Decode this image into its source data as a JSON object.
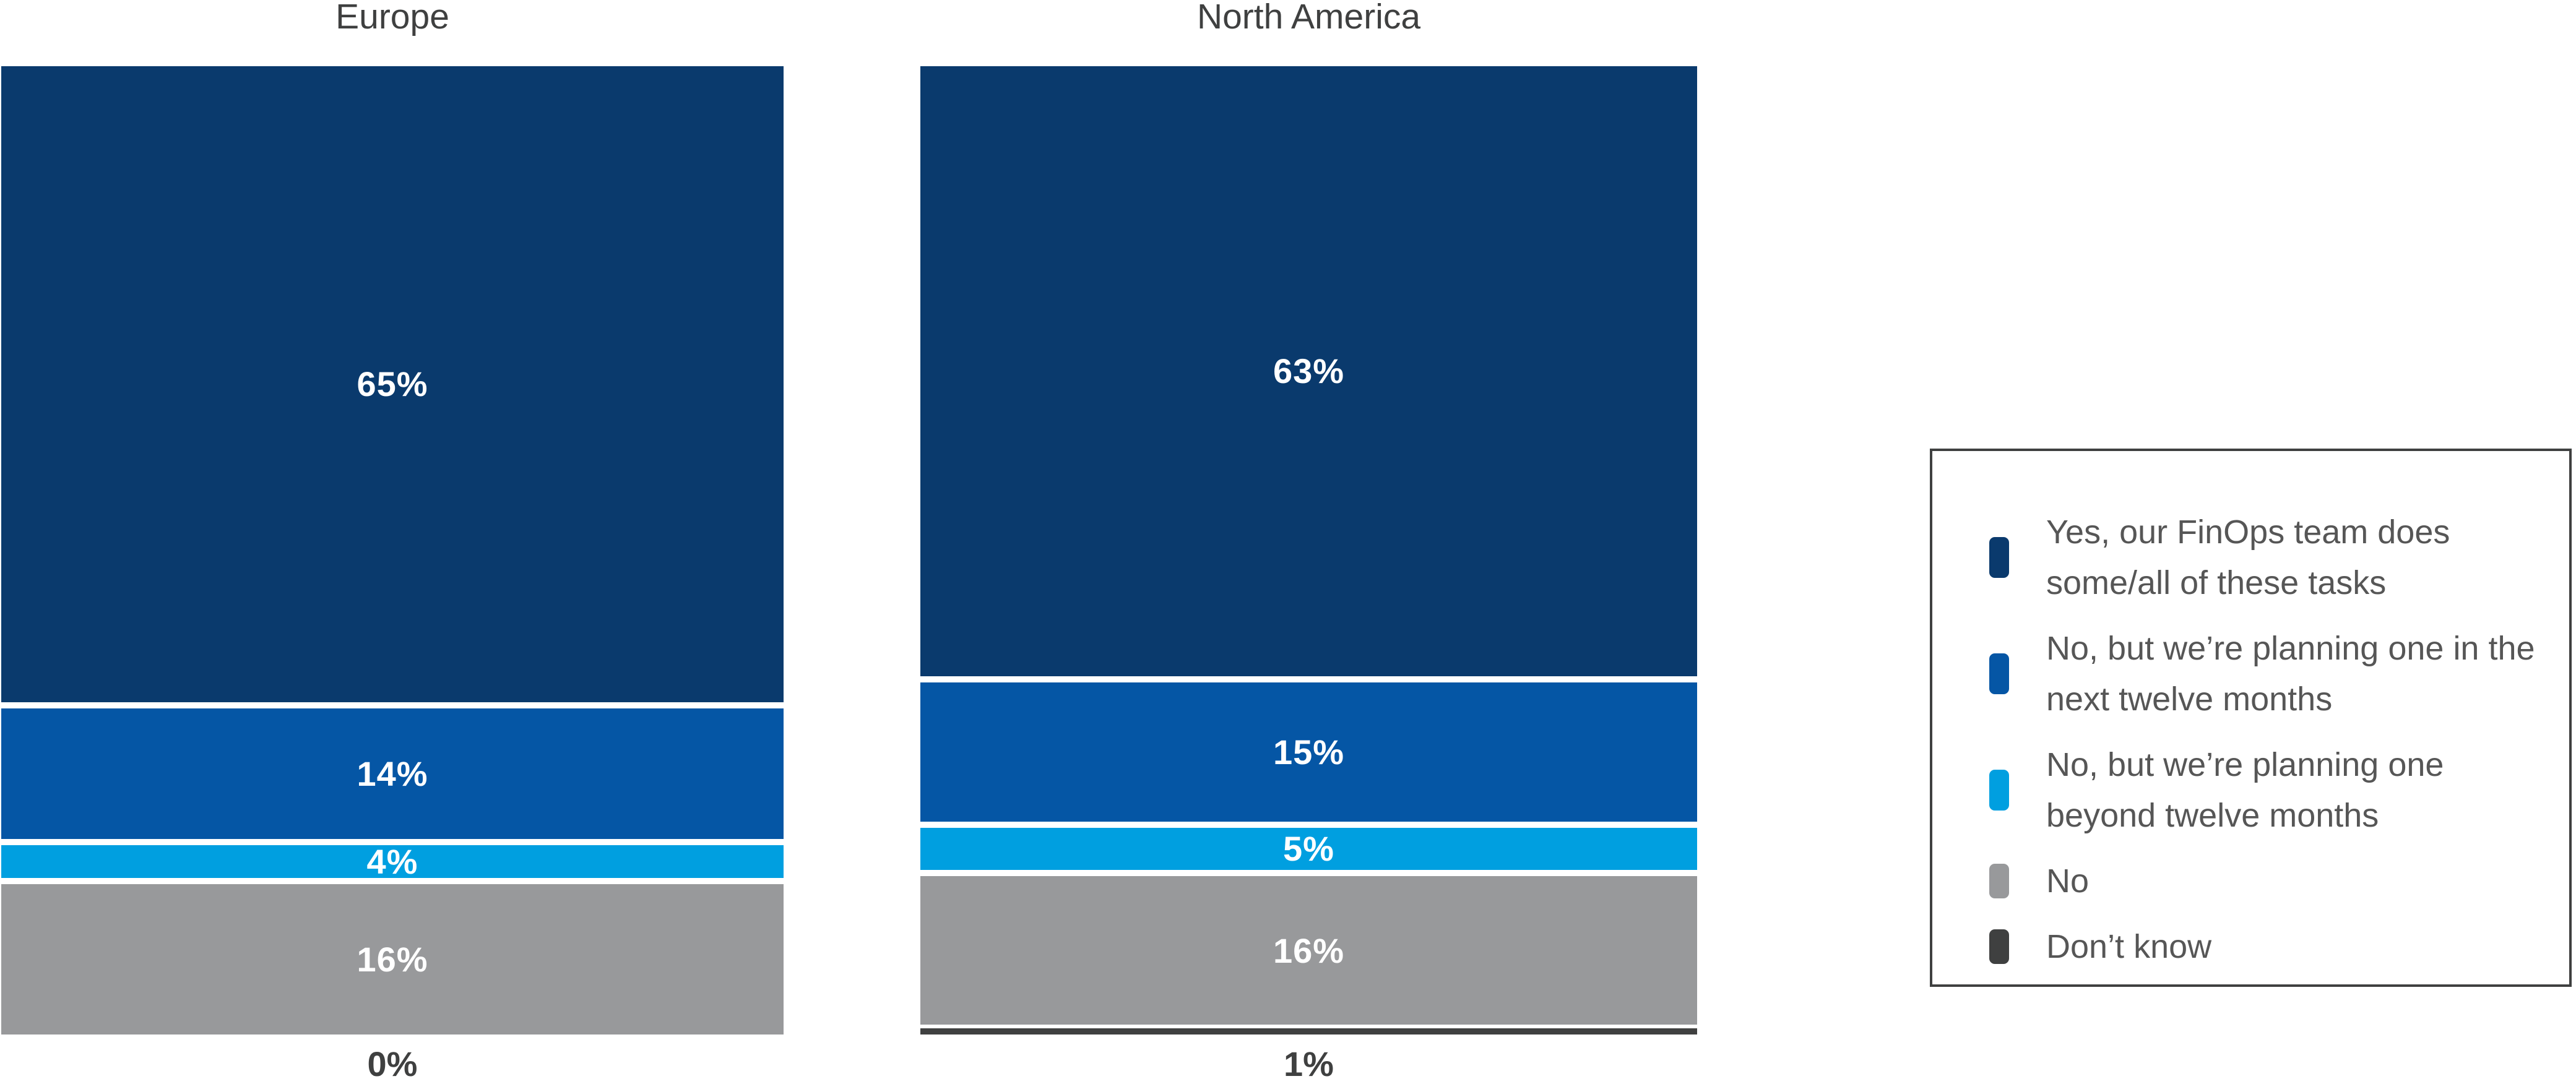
{
  "chart_data": {
    "type": "bar",
    "variant": "stacked-percent",
    "orientation": "vertical",
    "grid": false,
    "legend_position": "right",
    "ylim": [
      0,
      100
    ],
    "value_suffix": "%",
    "categories": [
      "Europe",
      "North America"
    ],
    "series": [
      {
        "name": "Yes, our FinOps team does some/all of these tasks",
        "color": "#0A3A6D",
        "values": [
          65,
          63
        ]
      },
      {
        "name": "No, but we’re planning one in the next twelve months",
        "color": "#0556A5",
        "values": [
          14,
          15
        ]
      },
      {
        "name": "No, but we’re planning one beyond twelve months",
        "color": "#009FE0",
        "values": [
          4,
          5
        ]
      },
      {
        "name": "No",
        "color": "#98999B",
        "values": [
          16,
          16
        ]
      },
      {
        "name": "Don’t know",
        "color": "#3F4040",
        "values": [
          0,
          1
        ]
      }
    ],
    "inside_labels": {
      "europe": [
        "65%",
        "14%",
        "4%",
        "16%"
      ],
      "north_america": [
        "63%",
        "15%",
        "5%",
        "16%"
      ]
    }
  },
  "columns": [
    {
      "title": "Europe",
      "below_label": "0%"
    },
    {
      "title": "North America",
      "below_label": "1%"
    }
  ],
  "legend": {
    "items": [
      {
        "label": "Yes, our FinOps team does some/all of these tasks",
        "color": "#0A3A6D"
      },
      {
        "label": "No, but we’re planning one in the next twelve months",
        "color": "#0556A5"
      },
      {
        "label": "No, but we’re planning one beyond twelve months",
        "color": "#009FE0"
      },
      {
        "label": "No",
        "color": "#98999B"
      },
      {
        "label": "Don’t know",
        "color": "#3F4040"
      }
    ]
  }
}
